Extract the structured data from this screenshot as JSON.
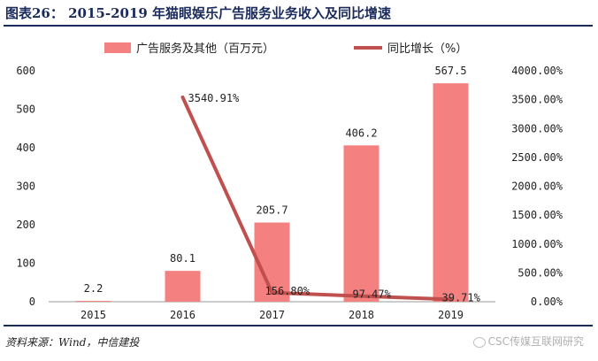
{
  "header": {
    "title": "图表26： 2015-2019 年猫眼娱乐广告服务业务收入及同比增速"
  },
  "footer": {
    "source": "资料来源：Wind，中信建投",
    "watermark": "CSC传媒互联网研究"
  },
  "colors": {
    "bar": "#f48080",
    "line": "#c0504d",
    "title": "#1a2a5a"
  },
  "chart_data": {
    "type": "bar",
    "categories": [
      "2015",
      "2016",
      "2017",
      "2018",
      "2019"
    ],
    "series": [
      {
        "name": "广告服务及其他（百万元）",
        "type": "bar",
        "axis": "left",
        "values": [
          2.2,
          80.1,
          205.7,
          406.2,
          567.5
        ],
        "labels": [
          "2.2",
          "80.1",
          "205.7",
          "406.2",
          "567.5"
        ]
      },
      {
        "name": "同比增长（%）",
        "type": "line",
        "axis": "right",
        "values": [
          null,
          3540.91,
          156.8,
          97.47,
          39.71
        ],
        "labels": [
          "",
          "3540.91%",
          "156.80%",
          "97.47%",
          "39.71%"
        ]
      }
    ],
    "y_left": {
      "min": 0,
      "max": 600,
      "ticks": [
        "0",
        "100",
        "200",
        "300",
        "400",
        "500",
        "600"
      ]
    },
    "y_right": {
      "min": 0,
      "max": 4000,
      "ticks": [
        "0.00%",
        "500.00%",
        "1000.00%",
        "1500.00%",
        "2000.00%",
        "2500.00%",
        "3000.00%",
        "3500.00%",
        "4000.00%"
      ]
    },
    "legend_position": "top-center",
    "grid": false
  }
}
